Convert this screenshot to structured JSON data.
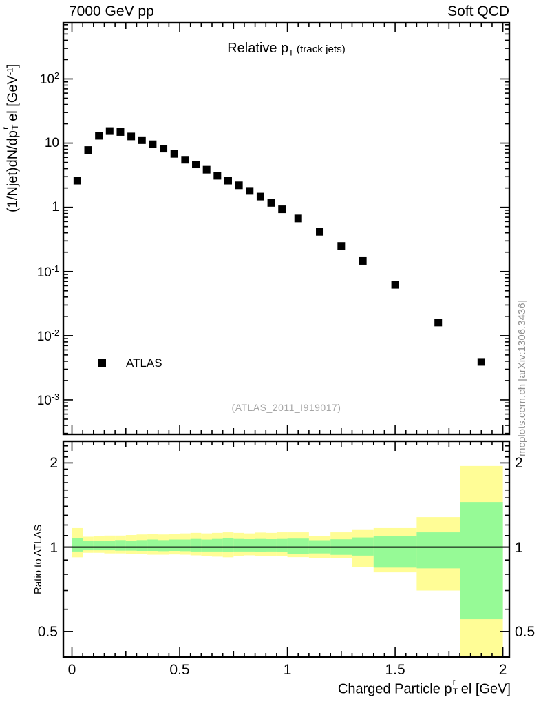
{
  "header": {
    "left": "7000 GeV pp",
    "right": "Soft QCD"
  },
  "plot_title": {
    "segments": [
      {
        "t": "Relative p"
      },
      {
        "t": "T",
        "s": "sub"
      },
      {
        "t": " (track jets)",
        "s": "small"
      }
    ]
  },
  "legend": {
    "label": "ATLAS"
  },
  "watermark": "(ATLAS_2011_I919017)",
  "side_note": "mcplots.cern.ch [arXiv:1306.3436]",
  "y_axis_title": {
    "segments": [
      {
        "t": "(1/Njet)dN/dp"
      },
      {
        "s": "stack",
        "top": "r",
        "bot": "T"
      },
      {
        "t": "el [GeV"
      },
      {
        "t": "-1",
        "s": "sup"
      },
      {
        "t": "]"
      }
    ]
  },
  "x_axis_title": {
    "segments": [
      {
        "t": "Charged Particle p"
      },
      {
        "s": "stack",
        "top": "r",
        "bot": "T"
      },
      {
        "t": "el [GeV]"
      }
    ]
  },
  "ratio_axis_title": "Ratio to ATLAS",
  "colors": {
    "band_outer": "#fffd96",
    "band_inner": "#96fa96",
    "marker": "#000000",
    "frame": "#000000",
    "muted_text": "#8f8f8f",
    "watermark_text": "#a6a6a6"
  },
  "chart_data": {
    "type": "scatter",
    "title": "Relative pT (track jets)",
    "xlabel": "Charged Particle pTrel [GeV]",
    "ylabel": "(1/Njet)dN/dpTrel [GeV-1]",
    "x_axis": {
      "range": [
        -0.04,
        2.03
      ],
      "minor_step": 0.05,
      "medium_step": 0.25,
      "ticks": [
        {
          "label": "0",
          "value": 0
        },
        {
          "label": "0.5",
          "value": 0.5
        },
        {
          "label": "1",
          "value": 1
        },
        {
          "label": "1.5",
          "value": 1.5
        },
        {
          "label": "2",
          "value": 2
        }
      ]
    },
    "top_panel": {
      "yscale": "log",
      "ylim": [
        0.00029,
        750
      ],
      "grid": false,
      "y_ticks": [
        {
          "label": "10^2",
          "value": 100
        },
        {
          "label": "10",
          "value": 10
        },
        {
          "label": "1",
          "value": 1
        },
        {
          "label": "10^-1",
          "value": 0.1
        },
        {
          "label": "10^-2",
          "value": 0.01
        },
        {
          "label": "10^-3",
          "value": 0.001
        }
      ],
      "series": [
        {
          "name": "ATLAS",
          "marker": "filled-square",
          "x": [
            0.025,
            0.075,
            0.125,
            0.175,
            0.225,
            0.275,
            0.325,
            0.375,
            0.425,
            0.475,
            0.525,
            0.575,
            0.625,
            0.675,
            0.725,
            0.775,
            0.825,
            0.875,
            0.925,
            0.975,
            1.05,
            1.15,
            1.25,
            1.35,
            1.5,
            1.7,
            1.9
          ],
          "y": [
            2.6,
            7.8,
            13.0,
            15.4,
            14.9,
            12.7,
            11.1,
            9.6,
            8.2,
            6.8,
            5.5,
            4.65,
            3.85,
            3.1,
            2.6,
            2.2,
            1.8,
            1.47,
            1.17,
            0.93,
            0.67,
            0.415,
            0.25,
            0.146,
            0.062,
            0.016,
            0.0039
          ]
        }
      ]
    },
    "bottom_panel": {
      "yscale": "log",
      "ylim": [
        0.405,
        2.39
      ],
      "ratio_reference": 1,
      "y_ticks": [
        {
          "label": "2",
          "value": 2
        },
        {
          "label": "1",
          "value": 1
        },
        {
          "label": "0.5",
          "value": 0.5
        }
      ],
      "bin_edges": [
        0,
        0.05,
        0.1,
        0.15,
        0.2,
        0.25,
        0.3,
        0.35,
        0.4,
        0.45,
        0.5,
        0.55,
        0.6,
        0.65,
        0.7,
        0.75,
        0.8,
        0.85,
        0.9,
        0.95,
        1.0,
        1.1,
        1.2,
        1.3,
        1.4,
        1.6,
        1.8,
        2.0
      ],
      "bands": {
        "outer": {
          "name": "data-uncertainty-outer",
          "hi": [
            1.17,
            1.09,
            1.095,
            1.1,
            1.1,
            1.105,
            1.11,
            1.115,
            1.11,
            1.115,
            1.12,
            1.125,
            1.12,
            1.125,
            1.13,
            1.125,
            1.12,
            1.128,
            1.125,
            1.13,
            1.13,
            1.094,
            1.13,
            1.158,
            1.17,
            1.28,
            1.95
          ],
          "lo": [
            0.92,
            0.955,
            0.955,
            0.95,
            0.95,
            0.948,
            0.945,
            0.94,
            0.94,
            0.942,
            0.94,
            0.935,
            0.93,
            0.925,
            0.92,
            0.93,
            0.935,
            0.93,
            0.932,
            0.93,
            0.921,
            0.912,
            0.912,
            0.848,
            0.813,
            0.7,
            0.4
          ]
        },
        "inner": {
          "name": "data-uncertainty-inner",
          "hi": [
            1.075,
            1.055,
            1.05,
            1.055,
            1.06,
            1.055,
            1.06,
            1.065,
            1.06,
            1.065,
            1.065,
            1.07,
            1.065,
            1.07,
            1.075,
            1.07,
            1.068,
            1.07,
            1.068,
            1.07,
            1.073,
            1.059,
            1.067,
            1.083,
            1.094,
            1.13,
            1.45
          ],
          "lo": [
            0.965,
            0.975,
            0.975,
            0.975,
            0.972,
            0.972,
            0.97,
            0.97,
            0.968,
            0.97,
            0.968,
            0.965,
            0.965,
            0.965,
            0.96,
            0.965,
            0.965,
            0.963,
            0.965,
            0.963,
            0.948,
            0.95,
            0.939,
            0.933,
            0.845,
            0.84,
            0.553
          ]
        }
      }
    }
  }
}
